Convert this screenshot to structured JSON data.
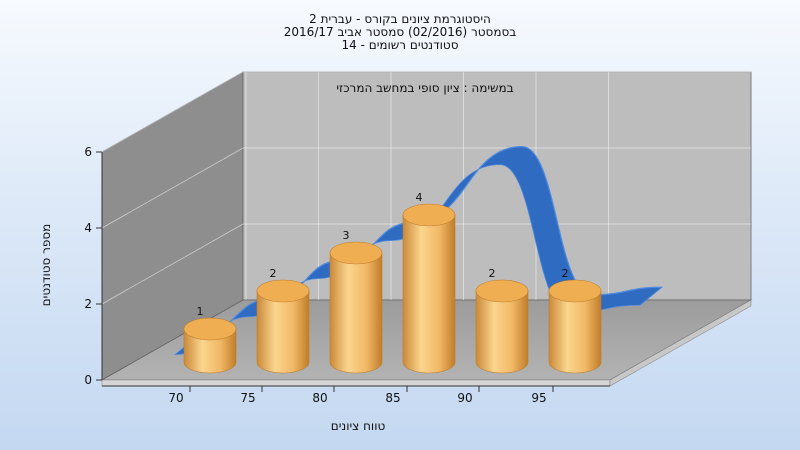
{
  "chart_data": {
    "type": "bar",
    "title_lines": [
      "היסטוגרמת ציונים בקורס - עברית 2",
      "בסמסטר  (02/2016)  סמסטר אביב 2016/17",
      "סטודנטים רשומים - 14"
    ],
    "subtitle": "במשימה : ציון סופי במחשב המרכזי",
    "xlabel": "טווח ציונים",
    "ylabel": "מספר סטודנטים",
    "categories": [
      "70",
      "75",
      "80",
      "85",
      "90",
      "95"
    ],
    "values": [
      1,
      2,
      3,
      4,
      2,
      2
    ],
    "data_labels": [
      "1",
      "2",
      "3",
      "4",
      "2",
      "2"
    ],
    "y_ticks": [
      "0",
      "2",
      "4",
      "6"
    ],
    "ylim": [
      0,
      6
    ],
    "grid": true,
    "trend_line": [
      0.8,
      1.8,
      2.8,
      3.8,
      5.8,
      1.9,
      2.1
    ],
    "colors": {
      "bar_light": "#fbd58e",
      "bar_mid": "#eaa64c",
      "bar_dark": "#c07d2a",
      "bar_top": "#f0ae52",
      "trend": "#2f6bc0",
      "trend_light": "#4f8be0",
      "back_wall": "#bdbdbd",
      "side_wall": "#8e8e8e",
      "floor": "#a6a6a6"
    }
  }
}
